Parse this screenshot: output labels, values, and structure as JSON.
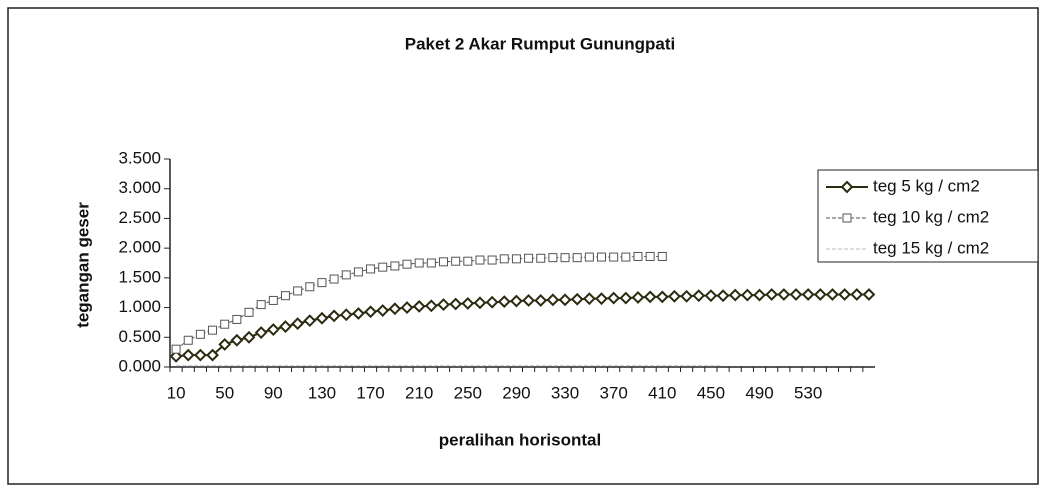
{
  "chart_data": {
    "type": "line",
    "title": "Paket 2 Akar Rumput Gunungpati",
    "y_label": "tegangan geser",
    "x_label": "peralihan horisontal",
    "categories": [
      "10",
      null,
      null,
      null,
      "50",
      null,
      null,
      null,
      "90",
      null,
      null,
      null,
      "130",
      null,
      null,
      null,
      "170",
      null,
      null,
      null,
      "210",
      null,
      null,
      null,
      "250",
      null,
      null,
      null,
      "290",
      null,
      null,
      null,
      "330",
      null,
      null,
      null,
      "370",
      null,
      null,
      null,
      "410",
      null,
      null,
      null,
      "450",
      null,
      null,
      null,
      "490",
      null,
      null,
      null,
      "530",
      null,
      null,
      null,
      null,
      null
    ],
    "series": [
      {
        "name": "teg 5 kg / cm2",
        "color": "#2b2b10",
        "marker": "diamond",
        "values": [
          0.18,
          0.2,
          0.2,
          0.2,
          0.38,
          0.45,
          0.5,
          0.58,
          0.63,
          0.68,
          0.73,
          0.78,
          0.82,
          0.86,
          0.88,
          0.9,
          0.93,
          0.95,
          0.98,
          1.0,
          1.02,
          1.03,
          1.05,
          1.06,
          1.07,
          1.08,
          1.09,
          1.1,
          1.11,
          1.12,
          1.12,
          1.13,
          1.13,
          1.14,
          1.15,
          1.15,
          1.16,
          1.16,
          1.17,
          1.18,
          1.18,
          1.19,
          1.19,
          1.2,
          1.2,
          1.2,
          1.21,
          1.21,
          1.21,
          1.22,
          1.22,
          1.22,
          1.22,
          1.22,
          1.22,
          1.22,
          1.22,
          1.22
        ]
      },
      {
        "name": "teg 10 kg / cm2",
        "color": "#555555",
        "marker": "square",
        "values": [
          0.3,
          0.45,
          0.55,
          0.62,
          0.72,
          0.8,
          0.92,
          1.05,
          1.12,
          1.2,
          1.28,
          1.35,
          1.42,
          1.48,
          1.55,
          1.6,
          1.65,
          1.68,
          1.7,
          1.73,
          1.75,
          1.75,
          1.77,
          1.78,
          1.78,
          1.8,
          1.8,
          1.82,
          1.82,
          1.83,
          1.83,
          1.84,
          1.84,
          1.84,
          1.85,
          1.85,
          1.85,
          1.85,
          1.86,
          1.86,
          1.86,
          null,
          null,
          null,
          null,
          null,
          null,
          null,
          null,
          null,
          null,
          null,
          null,
          null,
          null,
          null,
          null,
          null
        ]
      },
      {
        "name": "teg 15 kg / cm2",
        "color": "#bbbbbb",
        "marker": "none",
        "values": [
          0.02,
          0.02,
          0.02,
          0.02,
          0.02,
          0.02,
          0.02,
          0.02,
          0.02,
          0.02,
          0.02,
          0.02,
          0.02,
          0.02,
          0.02,
          0.02,
          0.02,
          0.02,
          0.02,
          0.02,
          0.02,
          0.02,
          0.02,
          0.02,
          0.02,
          0.02,
          0.02,
          0.02,
          0.02,
          0.02,
          0.02,
          0.02,
          0.02,
          0.02,
          0.02,
          0.02,
          0.02,
          0.02,
          0.02,
          0.02,
          0.02,
          0.02,
          0.02,
          0.02,
          0.02,
          0.02,
          null,
          null,
          null,
          null,
          null,
          null,
          null,
          null,
          null,
          null,
          null,
          null
        ]
      }
    ],
    "ylim": [
      0,
      3.5
    ],
    "yticks": [
      {
        "value": 0,
        "label": "0.000"
      },
      {
        "value": 0.5,
        "label": "0.500"
      },
      {
        "value": 1,
        "label": "1.000"
      },
      {
        "value": 1.5,
        "label": "1.500"
      },
      {
        "value": 2,
        "label": "2.000"
      },
      {
        "value": 2.5,
        "label": "2.500"
      },
      {
        "value": 3,
        "label": "3.000"
      },
      {
        "value": 3.5,
        "label": "3.500"
      }
    ],
    "legend": "right"
  }
}
